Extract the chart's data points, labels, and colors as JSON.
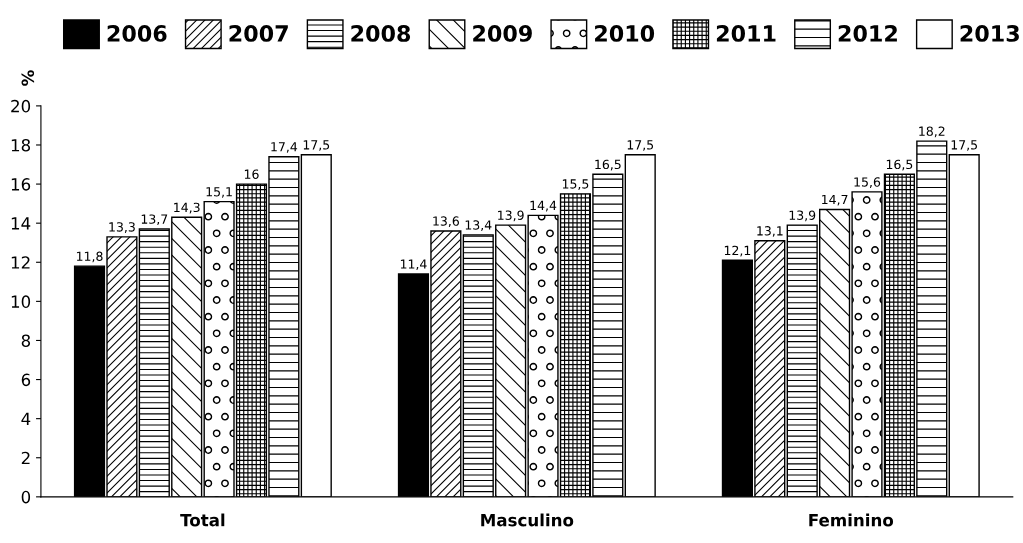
{
  "chart_data": {
    "type": "bar",
    "ylabel": "%",
    "categories": [
      "Total",
      "Masculino",
      "Feminino"
    ],
    "series": [
      {
        "name": "2006",
        "color": "#000000",
        "values": [
          11.8,
          11.4,
          12.1
        ],
        "value_labels": [
          "11,8",
          "11,4",
          "12,1"
        ]
      },
      {
        "name": "2007",
        "color": "#000000",
        "values": [
          13.3,
          13.6,
          13.1
        ],
        "value_labels": [
          "13,3",
          "13,6",
          "13,1"
        ]
      },
      {
        "name": "2008",
        "color": "#000000",
        "values": [
          13.7,
          13.4,
          13.9
        ],
        "value_labels": [
          "13,7",
          "13,4",
          "13,9"
        ]
      },
      {
        "name": "2009",
        "color": "#000000",
        "values": [
          14.3,
          13.9,
          14.7
        ],
        "value_labels": [
          "14,3",
          "13,9",
          "14,7"
        ]
      },
      {
        "name": "2010",
        "color": "#000000",
        "values": [
          15.1,
          14.4,
          15.6
        ],
        "value_labels": [
          "15,1",
          "14,4",
          "15,6"
        ]
      },
      {
        "name": "2011",
        "color": "#000000",
        "values": [
          16,
          15.5,
          16.5
        ],
        "value_labels": [
          "16",
          "15,5",
          "16,5"
        ]
      },
      {
        "name": "2012",
        "color": "#000000",
        "values": [
          17.4,
          16.5,
          18.2
        ],
        "value_labels": [
          "17,4",
          "16,5",
          "18,2"
        ]
      },
      {
        "name": "2013",
        "color": "#ffffff",
        "values": [
          17.5,
          17.5,
          17.5
        ],
        "value_labels": [
          "17,5",
          "17,5",
          "17,5"
        ]
      }
    ],
    "ylim": [
      0,
      20
    ],
    "yticks": [
      0,
      2,
      4,
      6,
      8,
      10,
      12,
      14,
      16,
      18,
      20
    ],
    "grid": false,
    "legend": "top"
  }
}
